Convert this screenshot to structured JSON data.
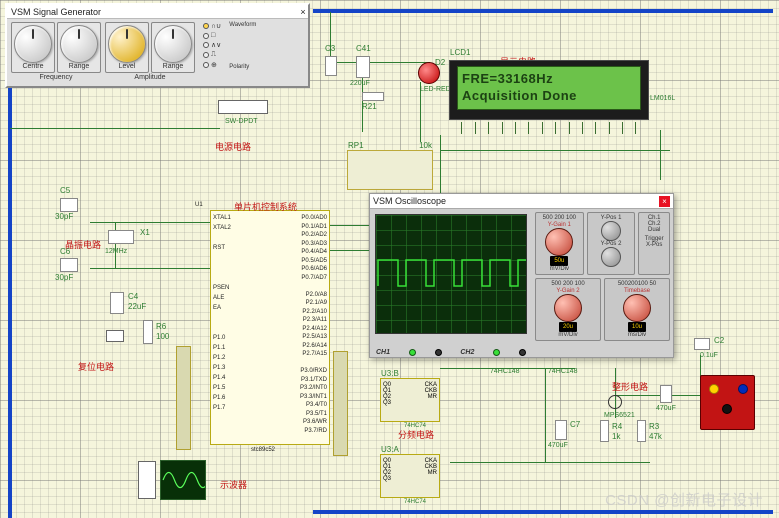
{
  "sig_gen": {
    "title": "VSM Signal Generator",
    "labels": {
      "centre": "Centre",
      "range_l": "Range",
      "level": "Level",
      "range_r": "Range",
      "freq": "Frequency",
      "amp": "Amplitude"
    },
    "wave_opts": [
      "∩∪",
      "□",
      "∧∨",
      "⎍",
      "⊕"
    ],
    "side": {
      "waveform": "Waveform",
      "polarity": "Polarity"
    }
  },
  "lcd": {
    "line1": "FRE=33168Hz",
    "line2": "Acquisition Done",
    "ref": "LCD1",
    "part": "LM016L"
  },
  "labels": {
    "power": "电源电路",
    "xtal": "晶振电路",
    "reset": "复位电路",
    "mcu": "单片机控制系统",
    "display": "显示电路",
    "shaping": "整形电路",
    "divider": "分频电路",
    "oscview": "示波器"
  },
  "components": {
    "c5": "C5",
    "c5v": "30pF",
    "x1": "X1",
    "x1v": "12MHz",
    "c6": "C6",
    "c6v": "30pF",
    "c4": "C4",
    "c4v": "22uF",
    "r6": "R6",
    "r6v": "100",
    "sw": "SW-DPDT",
    "c3": "C3",
    "c41": "C41",
    "c41v": "220uF",
    "r21": "R21",
    "d2": "D2",
    "d2v": "LED-RED",
    "rp1": "RP1",
    "rp1v": "10k",
    "u1": "U1",
    "u1_part": "stc89c52",
    "u3a": "U3:A",
    "u3b": "U3:B",
    "u3_part": "74HC74",
    "c7": "C7",
    "c7v": "470uF",
    "r4": "R4",
    "r4v": "1k",
    "r3": "R3",
    "r3v": "47k",
    "c2": "C2",
    "c2v": "0.1uF",
    "c1": "C1",
    "c1v": "470uF",
    "q": "MPS6521",
    "hc": "74HC148",
    "hc2": "74HC148"
  },
  "mcu_pins_left": [
    "XTAL1",
    "XTAL2",
    "",
    "RST",
    "",
    "",
    "",
    "PSEN",
    "ALE",
    "EA",
    "",
    "",
    "P1.0",
    "P1.1",
    "P1.2",
    "P1.3",
    "P1.4",
    "P1.5",
    "P1.6",
    "P1.7"
  ],
  "mcu_pins_right": [
    "P0.0/AD0",
    "P0.1/AD1",
    "P0.2/AD2",
    "P0.3/AD3",
    "P0.4/AD4",
    "P0.5/AD5",
    "P0.6/AD6",
    "P0.7/AD7",
    "",
    "P2.0/A8",
    "P2.1/A9",
    "P2.2/A10",
    "P2.3/A11",
    "P2.4/A12",
    "P2.5/A13",
    "P2.6/A14",
    "P2.7/A15",
    "",
    "P3.0/RXD",
    "P3.1/TXD",
    "P3.2/INT0",
    "P3.3/INT1",
    "P3.4/T0",
    "P3.5/T1",
    "P3.6/WR",
    "P3.7/RD"
  ],
  "divider_pins_l": [
    "Q0",
    "Q1",
    "Q2",
    "Q3"
  ],
  "divider_pins_r": [
    "CKA",
    "CKB",
    "",
    "MR"
  ],
  "osc": {
    "title": "VSM Oscilloscope",
    "ch1": "CH1",
    "ch2": "CH2",
    "panels": {
      "ygain1": "Y-Gain 1",
      "ygain2": "Y-Gain 2",
      "timebase": "Timebase",
      "ypos1": "Y-Pos 1",
      "ypos2": "Y-Pos 2",
      "trigger": "Trigger",
      "xpos": "X-Pos",
      "scale1": "500 200 100",
      "scale2": "500 200 100",
      "scale3": "500200100 50",
      "dual": "Dual",
      "chx": "Ch.1",
      "chy": "Ch.2"
    },
    "disp1": "50u",
    "disp2": "20u",
    "disp3": "10u",
    "units": "mV/Div",
    "units2": "ms/Div"
  },
  "watermark": "CSDN @创新电子设计"
}
